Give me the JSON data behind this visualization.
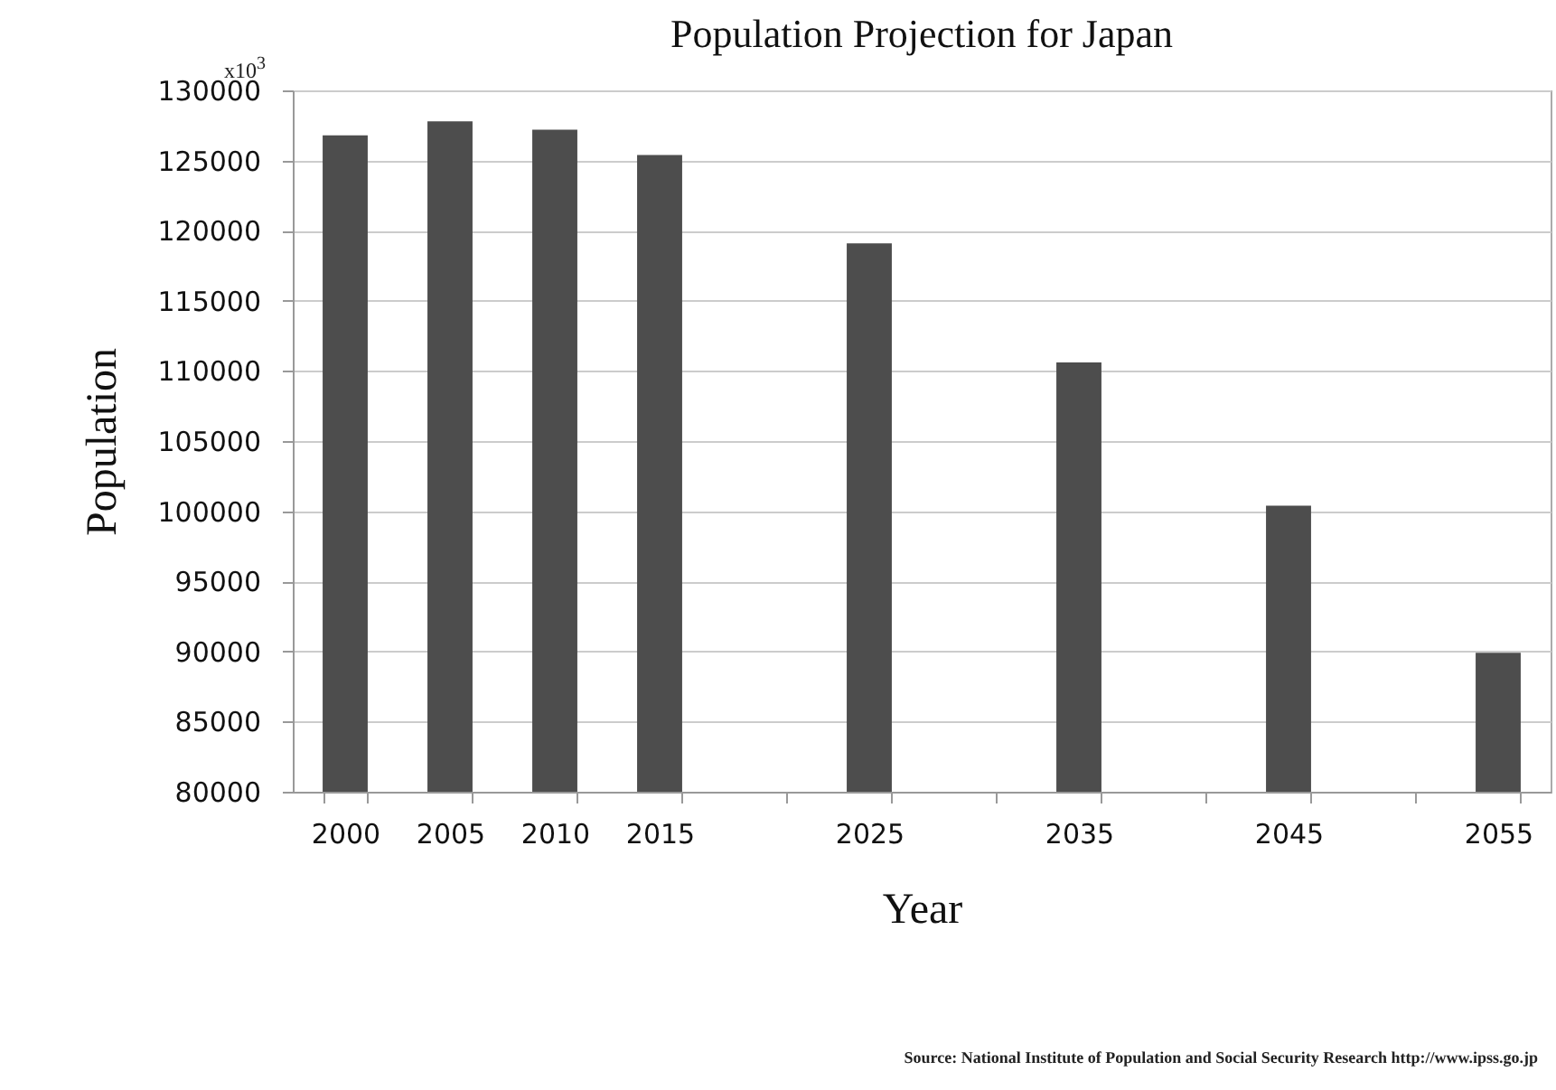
{
  "chart_data": {
    "type": "bar",
    "title": "Population Projection for Japan",
    "xlabel": "Year",
    "ylabel": "Population",
    "categories": [
      "2000",
      "2005",
      "2010",
      "2015",
      null,
      "2025",
      null,
      "2035",
      null,
      "2045",
      null,
      "2055"
    ],
    "values": [
      126800,
      127800,
      127200,
      125400,
      null,
      119100,
      null,
      110600,
      null,
      100400,
      null,
      89900
    ],
    "color": "#4d4d4d",
    "ylim": [
      80000,
      130000
    ],
    "yticks": [
      80000,
      85000,
      90000,
      95000,
      100000,
      105000,
      110000,
      115000,
      120000,
      125000,
      130000
    ],
    "grid": "y",
    "annotations": [
      "x10$^{3}$",
      "Source: National Institute of Population and Social Security Research http://www.ipss.go.jp"
    ]
  }
}
